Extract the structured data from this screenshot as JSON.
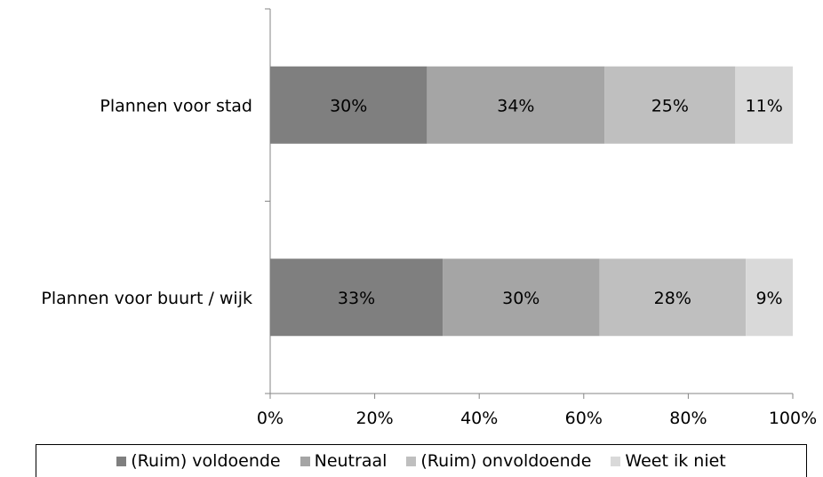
{
  "chart_data": {
    "type": "bar",
    "orientation": "horizontal",
    "stacked": "percent",
    "categories": [
      "Plannen voor stad",
      "Plannen voor buurt / wijk"
    ],
    "series": [
      {
        "name": "(Ruim) voldoende",
        "values": [
          30,
          33
        ],
        "labels": [
          "30%",
          "33%"
        ],
        "color": "#7f7f7f"
      },
      {
        "name": "Neutraal",
        "values": [
          34,
          30
        ],
        "labels": [
          "34%",
          "30%"
        ],
        "color": "#a5a5a5"
      },
      {
        "name": "(Ruim) onvoldoende",
        "values": [
          25,
          28
        ],
        "labels": [
          "25%",
          "28%"
        ],
        "color": "#bfbfbf"
      },
      {
        "name": "Weet ik niet",
        "values": [
          11,
          9
        ],
        "labels": [
          "11%",
          "9%"
        ],
        "color": "#d9d9d9"
      }
    ],
    "xlim": [
      0,
      100
    ],
    "xticks": [
      0,
      20,
      40,
      60,
      80,
      100
    ],
    "xtick_labels": [
      "0%",
      "20%",
      "40%",
      "60%",
      "80%",
      "100%"
    ],
    "title": "",
    "xlabel": "",
    "ylabel": "",
    "grid": false,
    "legend_position": "bottom"
  }
}
